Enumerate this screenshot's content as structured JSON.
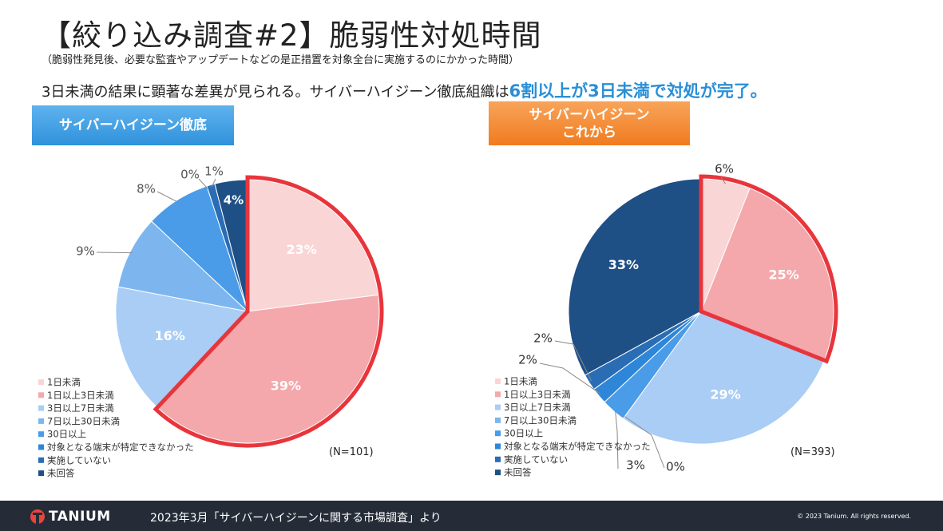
{
  "title": "【絞り込み調査#2】脆弱性対処時間",
  "subtitle": "（脆弱性発見後、必要な監査やアップデートなどの是正措置を対象全台に実施するのにかかった時間）",
  "lead_text": "3日未満の結果に顕著な差異が見られる。サイバーハイジーン徹底組織は",
  "lead_highlight": "6割以上が3日未満で対処が完了。",
  "footer": {
    "logo": "TANIUM",
    "source": "2023年3月「サイバーハイジーンに関する市場調査」より",
    "copyright": "© 2023 Tanium. All rights reserved."
  },
  "chart_data": [
    {
      "type": "pie",
      "title_lines": [
        "サイバーハイジーン徹底"
      ],
      "title_color": "#2f92db",
      "n_label": "(N=101)",
      "categories": [
        "1日未満",
        "1日以上3日未満",
        "3日以上7日未満",
        "7日以上30日未満",
        "30日以上",
        "対象となる端末が特定できなかった",
        "実施していない",
        "未回答"
      ],
      "values": [
        23,
        39,
        16,
        9,
        8,
        0,
        1,
        4
      ],
      "labels": [
        "23%",
        "39%",
        "16%",
        "9%",
        "8%",
        "0%",
        "1%",
        "4%"
      ],
      "colors": [
        "#fad5d6",
        "#f4a8ab",
        "#a9cdf5",
        "#7db6ef",
        "#4a9ce8",
        "#2e86d9",
        "#2a6db5",
        "#1e4f85"
      ],
      "highlighted": [
        0,
        1
      ],
      "legend_position": "bottom-left"
    },
    {
      "type": "pie",
      "title_lines": [
        "サイバーハイジーン",
        "これから"
      ],
      "title_color": "#f07b1f",
      "n_label": "(N=393)",
      "categories": [
        "1日未満",
        "1日以上3日未満",
        "3日以上7日未満",
        "7日以上30日未満",
        "30日以上",
        "対象となる端末が特定できなかった",
        "実施していない",
        "未回答"
      ],
      "values": [
        6,
        25,
        29,
        0,
        3,
        2,
        2,
        33
      ],
      "labels": [
        "6%",
        "25%",
        "29%",
        "0%",
        "3%",
        "2%",
        "2%",
        "33%"
      ],
      "colors": [
        "#fad5d6",
        "#f4a8ab",
        "#a9cdf5",
        "#7db6ef",
        "#4a9ce8",
        "#2e86d9",
        "#2a6db5",
        "#1e4f85"
      ],
      "highlighted": [
        0,
        1
      ],
      "legend_position": "bottom-left"
    }
  ]
}
